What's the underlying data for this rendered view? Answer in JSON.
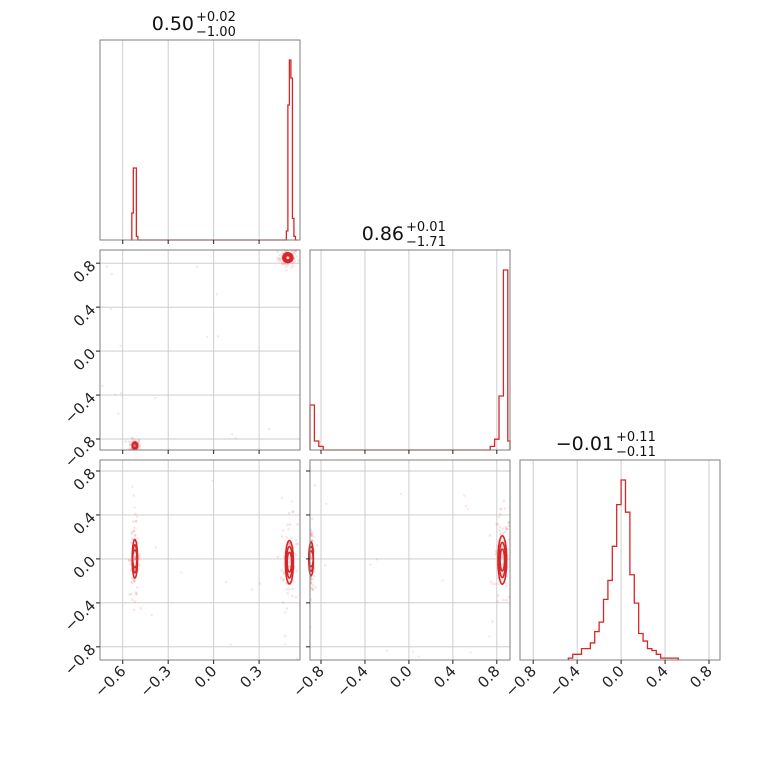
{
  "chart_data": {
    "type": "corner",
    "color": "#d62728",
    "parameters": [
      {
        "title": {
          "median": "0.50",
          "plus": "+0.02",
          "minus": "−1.00"
        },
        "range": [
          -0.75,
          0.57
        ],
        "ticks": [
          -0.6,
          -0.3,
          0.0,
          0.3
        ],
        "tick_labels": [
          "−0.6",
          "−0.3",
          "0.0",
          "0.3"
        ],
        "histogram": {
          "edges": [
            -0.55,
            -0.54,
            -0.53,
            -0.52,
            -0.51,
            -0.5,
            -0.49,
            0.48,
            0.49,
            0.5,
            0.51,
            0.52,
            0.53,
            0.54,
            0.55
          ],
          "counts": [
            0.0,
            0.15,
            0.4,
            0.4,
            0.02,
            0.0,
            0.0,
            0.05,
            0.75,
            1.0,
            0.9,
            0.12,
            0.02,
            0.0
          ]
        }
      },
      {
        "title": {
          "median": "0.86",
          "plus": "+0.01",
          "minus": "−1.71"
        },
        "range": [
          -0.9,
          0.92
        ],
        "ticks": [
          -0.8,
          -0.4,
          0.0,
          0.4,
          0.8
        ],
        "tick_labels": [
          "−0.8",
          "−0.4",
          "0.0",
          "0.4",
          "0.8"
        ],
        "histogram": {
          "edges": [
            -0.9,
            -0.86,
            -0.82,
            -0.78,
            -0.74,
            0.7,
            0.74,
            0.78,
            0.82,
            0.86,
            0.9,
            0.92
          ],
          "counts": [
            0.25,
            0.05,
            0.02,
            0.0,
            0.0,
            0.0,
            0.02,
            0.06,
            0.3,
            1.0,
            0.05
          ]
        }
      },
      {
        "title": {
          "median": "−0.01",
          "plus": "+0.11",
          "minus": "−0.11"
        },
        "range": [
          -0.92,
          0.9
        ],
        "ticks": [
          -0.8,
          -0.4,
          0.0,
          0.4,
          0.8
        ],
        "tick_labels": [
          "−0.8",
          "−0.4",
          "0.0",
          "0.4",
          "0.8"
        ],
        "histogram": {
          "edges": [
            -0.48,
            -0.44,
            -0.4,
            -0.36,
            -0.32,
            -0.28,
            -0.24,
            -0.2,
            -0.16,
            -0.12,
            -0.08,
            -0.04,
            0.0,
            0.04,
            0.08,
            0.12,
            0.16,
            0.2,
            0.24,
            0.28,
            0.32,
            0.36,
            0.4,
            0.48,
            0.52
          ],
          "counts": [
            0.01,
            0.03,
            0.03,
            0.06,
            0.06,
            0.09,
            0.15,
            0.2,
            0.32,
            0.42,
            0.6,
            0.82,
            0.95,
            0.78,
            0.45,
            0.3,
            0.14,
            0.1,
            0.06,
            0.05,
            0.03,
            0.01,
            0.01,
            0.01
          ]
        }
      }
    ],
    "pairs": [
      {
        "x_param": 0,
        "y_param": 1,
        "modes": [
          {
            "x": 0.49,
            "y": 0.85,
            "sx": 0.015,
            "sy": 0.02
          },
          {
            "x": -0.52,
            "y": -0.86,
            "sx": 0.008,
            "sy": 0.015
          }
        ]
      },
      {
        "x_param": 0,
        "y_param": 2,
        "modes": [
          {
            "x": 0.5,
            "y": -0.03,
            "sx": 0.012,
            "sy": 0.09
          },
          {
            "x": -0.52,
            "y": 0.0,
            "sx": 0.008,
            "sy": 0.08
          }
        ]
      },
      {
        "x_param": 1,
        "y_param": 2,
        "modes": [
          {
            "x": 0.85,
            "y": -0.01,
            "sx": 0.018,
            "sy": 0.1
          },
          {
            "x": -0.89,
            "y": 0.0,
            "sx": 0.008,
            "sy": 0.07
          }
        ]
      }
    ]
  }
}
